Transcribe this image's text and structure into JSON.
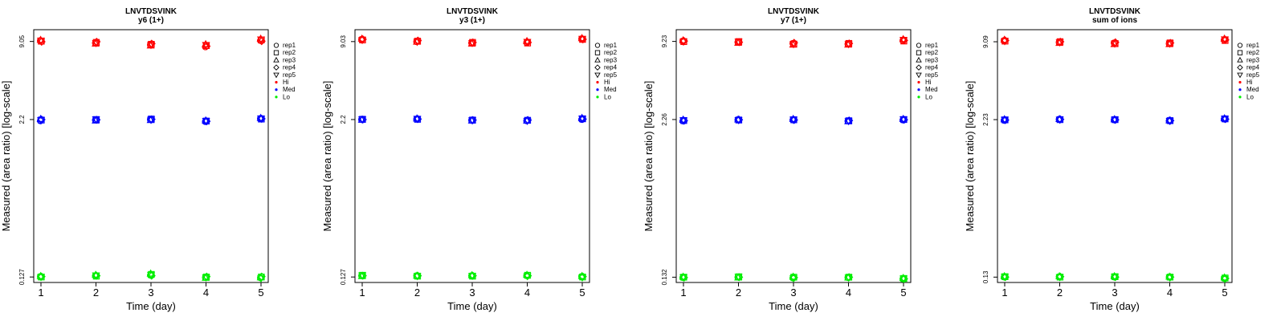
{
  "chart_data": [
    {
      "type": "scatter",
      "title": "LNVTDSVINK",
      "subtitle": "y6 (1+)",
      "xlabel": "Time (day)",
      "ylabel": "Measured (area ratio) [log-scale]",
      "yscale": "log",
      "x": [
        1,
        2,
        3,
        4,
        5
      ],
      "xticks": [
        "1",
        "2",
        "3",
        "4",
        "5"
      ],
      "yticks": [
        {
          "value": 9.05,
          "label": "9.05"
        },
        {
          "value": 2.2,
          "label": "2.2"
        },
        {
          "value": 0.127,
          "label": "0.127"
        }
      ],
      "ylim": [
        0.115,
        11.2
      ],
      "series": [
        {
          "name": "Hi",
          "color": "#ff0000",
          "reps": {
            "rep1": [
              9.2,
              8.8,
              8.5,
              8.2,
              9.2
            ],
            "rep2": [
              9.1,
              8.9,
              8.6,
              8.4,
              9.3
            ],
            "rep3": [
              9.3,
              8.7,
              8.4,
              8.6,
              9.5
            ],
            "rep4": [
              9.0,
              9.0,
              8.7,
              8.3,
              9.1
            ],
            "rep5": [
              9.2,
              8.8,
              8.5,
              8.5,
              9.4
            ]
          }
        },
        {
          "name": "Med",
          "color": "#0000ff",
          "reps": {
            "rep1": [
              2.15,
              2.18,
              2.2,
              2.12,
              2.24
            ],
            "rep2": [
              2.18,
              2.2,
              2.22,
              2.14,
              2.22
            ],
            "rep3": [
              2.22,
              2.16,
              2.18,
              2.16,
              2.26
            ],
            "rep4": [
              2.2,
              2.19,
              2.21,
              2.13,
              2.23
            ],
            "rep5": [
              2.17,
              2.21,
              2.19,
              2.15,
              2.25
            ]
          }
        },
        {
          "name": "Lo",
          "color": "#00ee00",
          "reps": {
            "rep1": [
              0.128,
              0.13,
              0.131,
              0.126,
              0.125
            ],
            "rep2": [
              0.127,
              0.129,
              0.133,
              0.127,
              0.127
            ],
            "rep3": [
              0.129,
              0.132,
              0.135,
              0.125,
              0.126
            ],
            "rep4": [
              0.128,
              0.13,
              0.13,
              0.128,
              0.128
            ],
            "rep5": [
              0.127,
              0.131,
              0.132,
              0.126,
              0.124
            ]
          }
        }
      ]
    },
    {
      "type": "scatter",
      "title": "LNVTDSVINK",
      "subtitle": "y3 (1+)",
      "xlabel": "Time (day)",
      "ylabel": "Measured (area ratio) [log-scale]",
      "yscale": "log",
      "x": [
        1,
        2,
        3,
        4,
        5
      ],
      "xticks": [
        "1",
        "2",
        "3",
        "4",
        "5"
      ],
      "yticks": [
        {
          "value": 9.03,
          "label": "9.03"
        },
        {
          "value": 2.2,
          "label": "2.2"
        },
        {
          "value": 0.127,
          "label": "0.127"
        }
      ],
      "ylim": [
        0.115,
        11.2
      ],
      "series": [
        {
          "name": "Hi",
          "color": "#ff0000",
          "reps": {
            "rep1": [
              9.4,
              9.0,
              8.8,
              8.9,
              9.5
            ],
            "rep2": [
              9.3,
              9.1,
              8.9,
              8.8,
              9.4
            ],
            "rep3": [
              9.5,
              9.0,
              8.7,
              9.1,
              9.6
            ],
            "rep4": [
              9.4,
              9.2,
              8.9,
              8.9,
              9.4
            ],
            "rep5": [
              9.3,
              9.0,
              8.8,
              9.0,
              9.5
            ]
          }
        },
        {
          "name": "Med",
          "color": "#0000ff",
          "reps": {
            "rep1": [
              2.2,
              2.22,
              2.17,
              2.15,
              2.2
            ],
            "rep2": [
              2.21,
              2.21,
              2.18,
              2.17,
              2.23
            ],
            "rep3": [
              2.19,
              2.24,
              2.16,
              2.16,
              2.26
            ],
            "rep4": [
              2.2,
              2.22,
              2.18,
              2.18,
              2.22
            ],
            "rep5": [
              2.21,
              2.23,
              2.17,
              2.15,
              2.24
            ]
          }
        },
        {
          "name": "Lo",
          "color": "#00ee00",
          "reps": {
            "rep1": [
              0.13,
              0.13,
              0.13,
              0.13,
              0.128
            ],
            "rep2": [
              0.131,
              0.129,
              0.129,
              0.131,
              0.127
            ],
            "rep3": [
              0.129,
              0.13,
              0.131,
              0.132,
              0.129
            ],
            "rep4": [
              0.13,
              0.13,
              0.13,
              0.13,
              0.128
            ],
            "rep5": [
              0.131,
              0.129,
              0.13,
              0.129,
              0.126
            ]
          }
        }
      ]
    },
    {
      "type": "scatter",
      "title": "LNVTDSVINK",
      "subtitle": "y7 (1+)",
      "xlabel": "Time (day)",
      "ylabel": "Measured (area ratio) [log-scale]",
      "yscale": "log",
      "x": [
        1,
        2,
        3,
        4,
        5
      ],
      "xticks": [
        "1",
        "2",
        "3",
        "4",
        "5"
      ],
      "yticks": [
        {
          "value": 9.23,
          "label": "9.23"
        },
        {
          "value": 2.26,
          "label": "2.26"
        },
        {
          "value": 0.132,
          "label": "0.132"
        }
      ],
      "ylim": [
        0.12,
        11.4
      ],
      "series": [
        {
          "name": "Hi",
          "color": "#ff0000",
          "reps": {
            "rep1": [
              9.3,
              9.1,
              8.9,
              8.8,
              9.4
            ],
            "rep2": [
              9.2,
              9.2,
              8.8,
              8.9,
              9.3
            ],
            "rep3": [
              9.4,
              9.0,
              8.7,
              8.7,
              9.6
            ],
            "rep4": [
              9.3,
              9.1,
              9.0,
              8.9,
              9.4
            ],
            "rep5": [
              9.2,
              9.2,
              8.8,
              8.8,
              9.5
            ]
          }
        },
        {
          "name": "Med",
          "color": "#0000ff",
          "reps": {
            "rep1": [
              2.2,
              2.25,
              2.24,
              2.2,
              2.24
            ],
            "rep2": [
              2.22,
              2.24,
              2.25,
              2.21,
              2.26
            ],
            "rep3": [
              2.25,
              2.26,
              2.28,
              2.19,
              2.28
            ],
            "rep4": [
              2.21,
              2.25,
              2.24,
              2.22,
              2.25
            ],
            "rep5": [
              2.23,
              2.24,
              2.26,
              2.2,
              2.27
            ]
          }
        },
        {
          "name": "Lo",
          "color": "#00ee00",
          "reps": {
            "rep1": [
              0.131,
              0.132,
              0.13,
              0.131,
              0.128
            ],
            "rep2": [
              0.132,
              0.133,
              0.132,
              0.132,
              0.129
            ],
            "rep3": [
              0.133,
              0.131,
              0.133,
              0.131,
              0.13
            ],
            "rep4": [
              0.131,
              0.132,
              0.131,
              0.132,
              0.128
            ],
            "rep5": [
              0.132,
              0.133,
              0.13,
              0.131,
              0.129
            ]
          }
        }
      ]
    },
    {
      "type": "scatter",
      "title": "LNVTDSVINK",
      "subtitle": "sum of ions",
      "xlabel": "Time (day)",
      "ylabel": "Measured (area ratio) [log-scale]",
      "yscale": "log",
      "x": [
        1,
        2,
        3,
        4,
        5
      ],
      "xticks": [
        "1",
        "2",
        "3",
        "4",
        "5"
      ],
      "yticks": [
        {
          "value": 9.09,
          "label": "9.09"
        },
        {
          "value": 2.23,
          "label": "2.23"
        },
        {
          "value": 0.13,
          "label": "0.13"
        }
      ],
      "ylim": [
        0.118,
        11.3
      ],
      "series": [
        {
          "name": "Hi",
          "color": "#ff0000",
          "reps": {
            "rep1": [
              9.3,
              9.0,
              8.9,
              8.8,
              9.4
            ],
            "rep2": [
              9.2,
              9.1,
              8.8,
              8.9,
              9.3
            ],
            "rep3": [
              9.4,
              8.9,
              8.7,
              8.7,
              9.6
            ],
            "rep4": [
              9.3,
              9.1,
              9.0,
              8.9,
              9.4
            ],
            "rep5": [
              9.2,
              9.0,
              8.8,
              8.8,
              9.5
            ]
          }
        },
        {
          "name": "Med",
          "color": "#0000ff",
          "reps": {
            "rep1": [
              2.2,
              2.24,
              2.22,
              2.18,
              2.25
            ],
            "rep2": [
              2.22,
              2.23,
              2.23,
              2.19,
              2.26
            ],
            "rep3": [
              2.24,
              2.25,
              2.24,
              2.2,
              2.28
            ],
            "rep4": [
              2.21,
              2.24,
              2.22,
              2.19,
              2.25
            ],
            "rep5": [
              2.23,
              2.23,
              2.23,
              2.18,
              2.27
            ]
          }
        },
        {
          "name": "Lo",
          "color": "#00ee00",
          "reps": {
            "rep1": [
              0.13,
              0.131,
              0.13,
              0.13,
              0.127
            ],
            "rep2": [
              0.131,
              0.13,
              0.131,
              0.13,
              0.128
            ],
            "rep3": [
              0.132,
              0.132,
              0.132,
              0.131,
              0.129
            ],
            "rep4": [
              0.13,
              0.131,
              0.13,
              0.13,
              0.127
            ],
            "rep5": [
              0.131,
              0.13,
              0.131,
              0.129,
              0.126
            ]
          }
        }
      ]
    }
  ],
  "legend": {
    "entries": [
      {
        "label": "rep1",
        "kind": "shape",
        "shape": "circle"
      },
      {
        "label": "rep2",
        "kind": "shape",
        "shape": "square"
      },
      {
        "label": "rep3",
        "kind": "shape",
        "shape": "triangle-up"
      },
      {
        "label": "rep4",
        "kind": "shape",
        "shape": "diamond"
      },
      {
        "label": "rep5",
        "kind": "shape",
        "shape": "triangle-down"
      },
      {
        "label": "Hi",
        "kind": "color",
        "color": "#ff0000"
      },
      {
        "label": "Med",
        "kind": "color",
        "color": "#0000ff"
      },
      {
        "label": "Lo",
        "kind": "color",
        "color": "#00ee00"
      }
    ]
  }
}
